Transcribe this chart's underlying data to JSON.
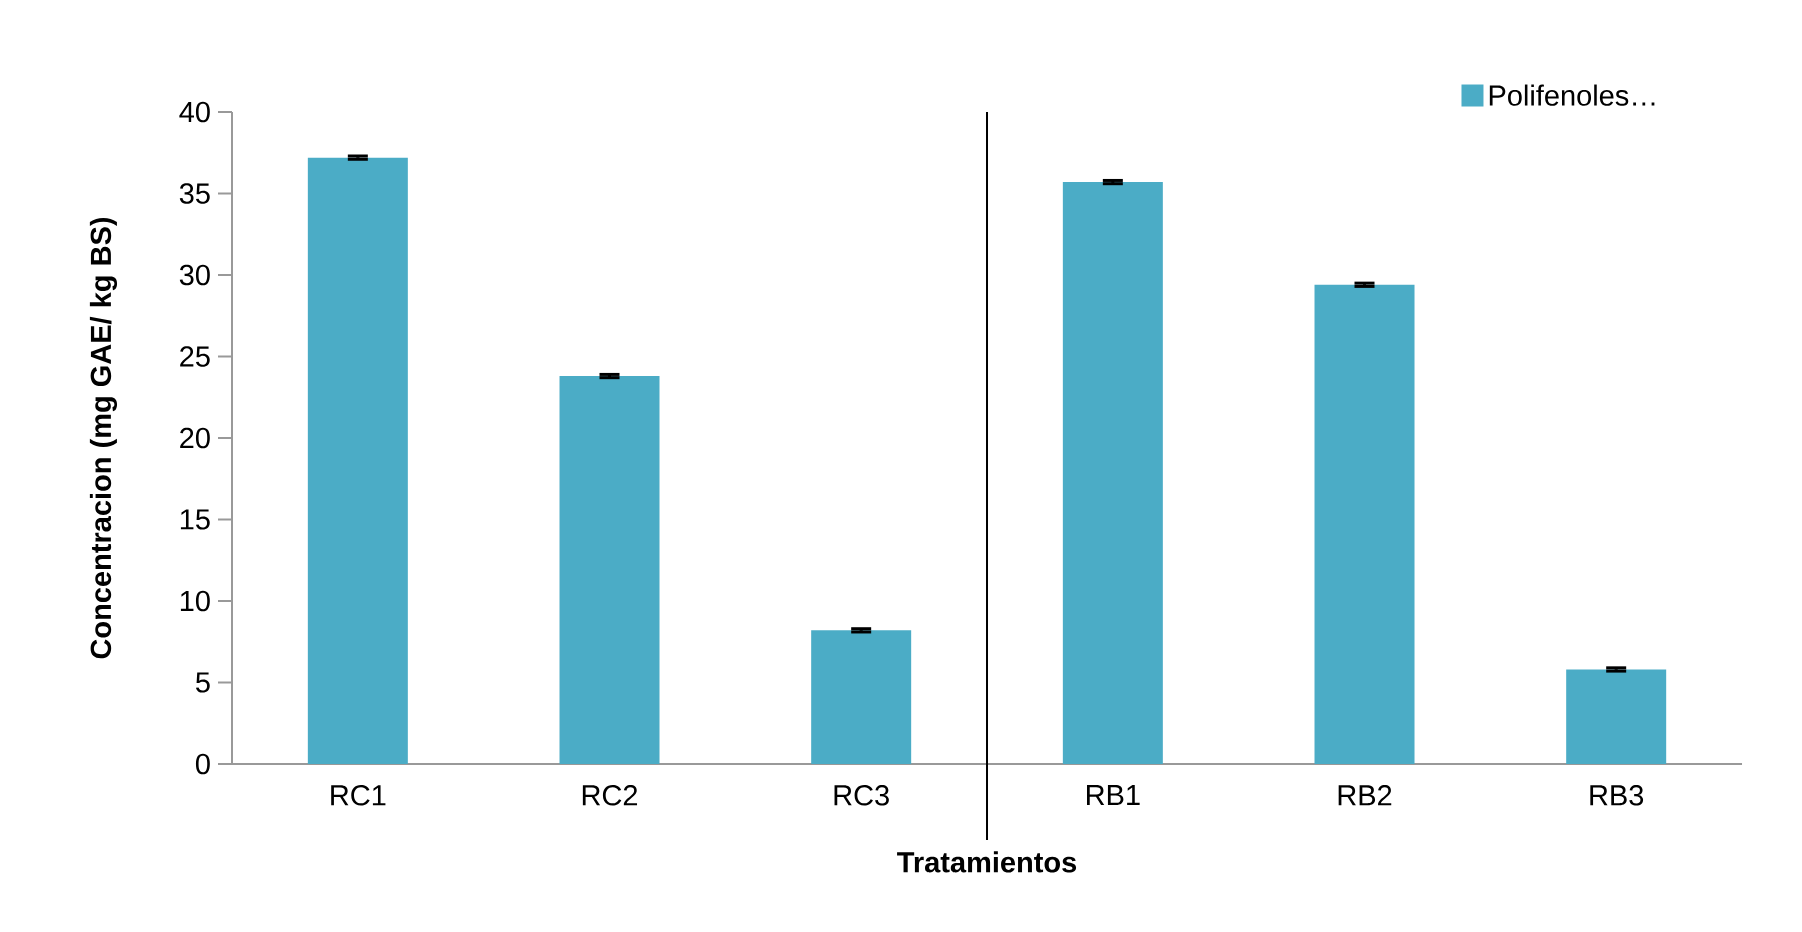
{
  "chart_data": {
    "type": "bar",
    "xlabel": "Tratamientos",
    "ylabel": "Concentracion (mg GAE/ kg BS)",
    "categories": [
      "RC1",
      "RC2",
      "RC3",
      "RB1",
      "RB2",
      "RB3"
    ],
    "series": [
      {
        "name": "Polifenoles…",
        "color": "#4bacc6",
        "values": [
          37.2,
          23.8,
          8.2,
          35.7,
          29.4,
          5.8
        ],
        "errors": [
          0.1,
          0.1,
          0.1,
          0.1,
          0.1,
          0.1
        ]
      }
    ],
    "ylim": [
      0,
      40
    ],
    "yticks": [
      0,
      5,
      10,
      15,
      20,
      25,
      30,
      35,
      40
    ],
    "legend": "top right"
  }
}
